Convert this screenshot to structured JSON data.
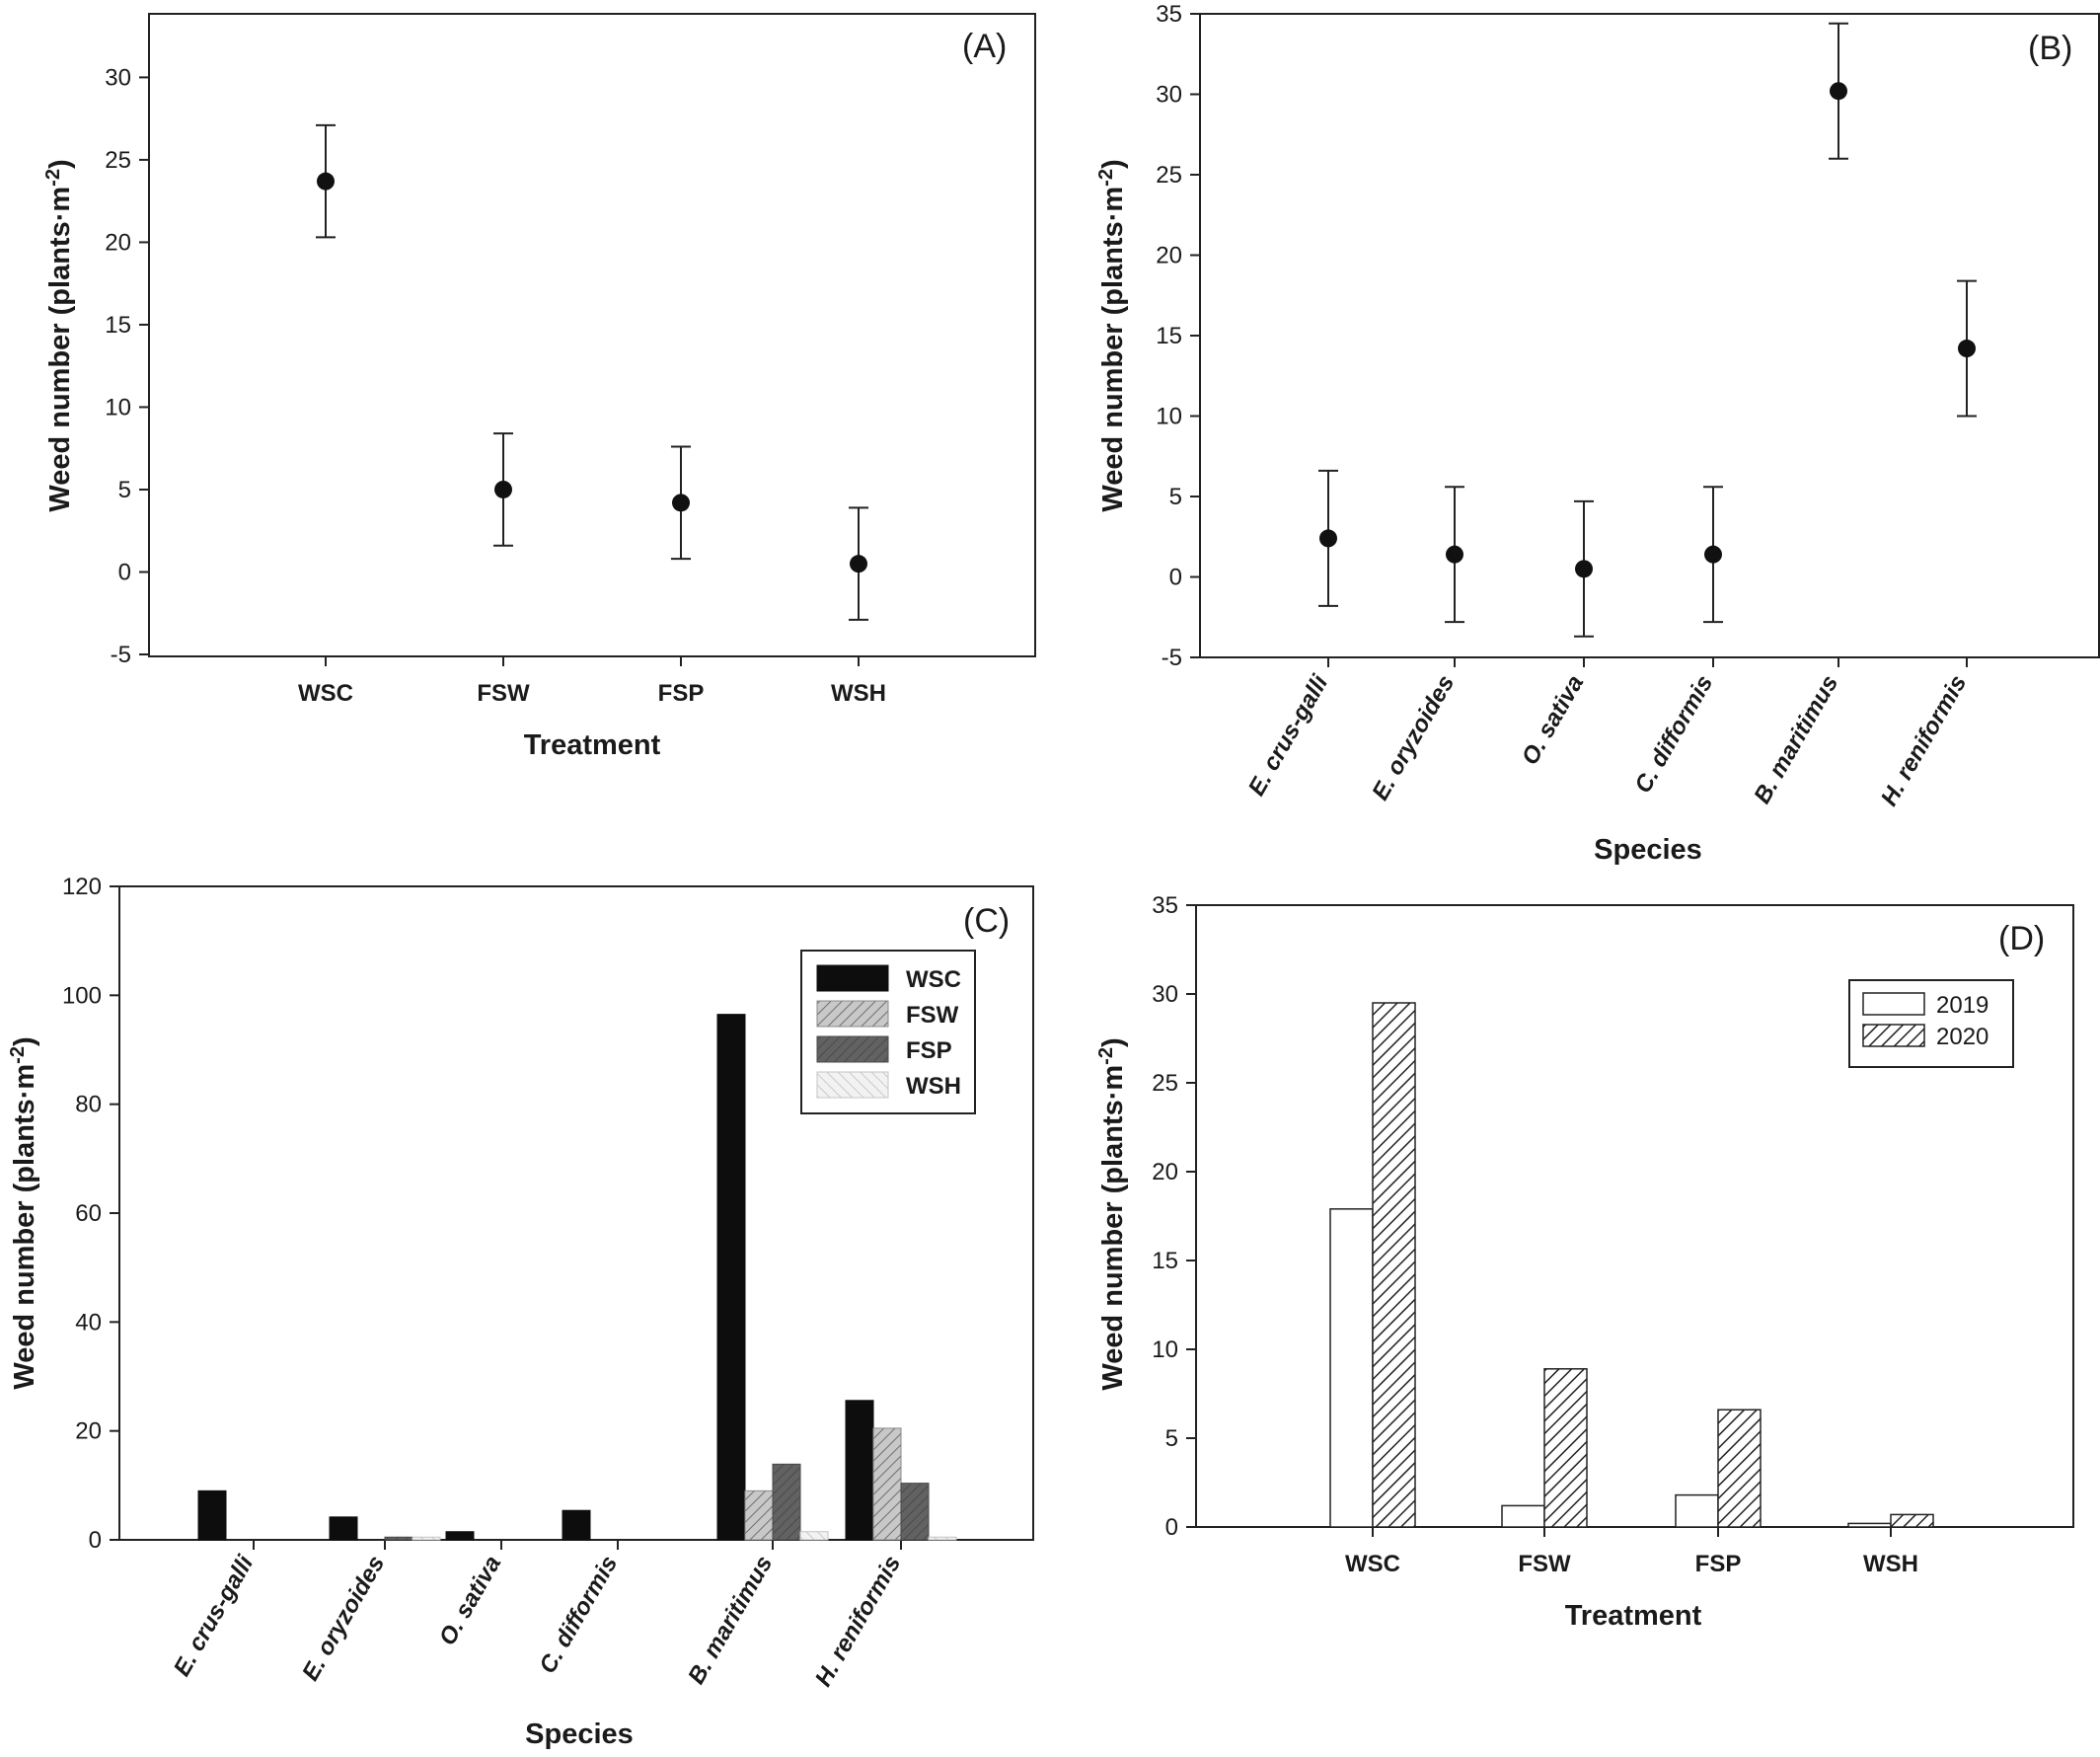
{
  "chart_data": [
    {
      "panel": "(A)",
      "type": "scatter",
      "xlabel": "Treatment",
      "ylabel": "Weed number (plants·m-2)",
      "ylim": [
        -5,
        32
      ],
      "yticks": [
        "-5",
        "0",
        "5",
        "10",
        "15",
        "20",
        "25",
        "30"
      ],
      "categories": [
        "WSC",
        "FSW",
        "FSP",
        "WSH"
      ],
      "values": [
        23.7,
        5.0,
        4.2,
        0.5
      ],
      "errors": [
        3.4,
        3.4,
        3.4,
        3.4
      ],
      "grid": false
    },
    {
      "panel": "(B)",
      "type": "scatter",
      "xlabel": "Species",
      "ylabel": "Weed number (plants·m-2)",
      "ylim": [
        -5,
        35
      ],
      "yticks": [
        "-5",
        "0",
        "5",
        "10",
        "15",
        "20",
        "25",
        "30",
        "35"
      ],
      "categories": [
        "E. crus-galli",
        "E. oryzoides",
        "O. sativa",
        "C. difformis",
        "B. maritimus",
        "H. reniformis"
      ],
      "values": [
        2.4,
        1.4,
        0.5,
        1.4,
        30.2,
        14.2
      ],
      "errors": [
        4.2,
        4.2,
        4.2,
        4.2,
        4.2,
        4.2
      ],
      "grid": false
    },
    {
      "panel": "(C)",
      "type": "bar",
      "xlabel": "Species",
      "ylabel": "Weed number (plants·m-2)",
      "ylim": [
        0,
        120
      ],
      "yticks": [
        "0",
        "20",
        "40",
        "60",
        "80",
        "100",
        "120"
      ],
      "categories": [
        "E. crus-galli",
        "E. oryzoides",
        "O. sativa",
        "C. difformis",
        "B. maritimus",
        "H. reniformis"
      ],
      "series": [
        {
          "name": "WSC",
          "values": [
            9.0,
            4.2,
            1.5,
            5.4,
            96.5,
            25.6
          ]
        },
        {
          "name": "FSW",
          "values": [
            0,
            0,
            0,
            0,
            9.0,
            20.5
          ]
        },
        {
          "name": "FSP",
          "values": [
            0,
            0.5,
            0,
            0,
            13.9,
            10.4
          ]
        },
        {
          "name": "WSH",
          "values": [
            0,
            0.5,
            0,
            0,
            1.5,
            0.5
          ]
        }
      ],
      "legend": "top-right",
      "grid": false
    },
    {
      "panel": "(D)",
      "type": "bar",
      "xlabel": "Treatment",
      "ylabel": "Weed number (plants·m-2)",
      "ylim": [
        0,
        35
      ],
      "yticks": [
        "0",
        "5",
        "10",
        "15",
        "20",
        "25",
        "30",
        "35"
      ],
      "categories": [
        "WSC",
        "FSW",
        "FSP",
        "WSH"
      ],
      "series": [
        {
          "name": "2019",
          "values": [
            17.9,
            1.2,
            1.8,
            0.2
          ]
        },
        {
          "name": "2020",
          "values": [
            29.5,
            8.9,
            6.6,
            0.7
          ]
        }
      ],
      "legend": "top-right",
      "grid": false
    }
  ]
}
